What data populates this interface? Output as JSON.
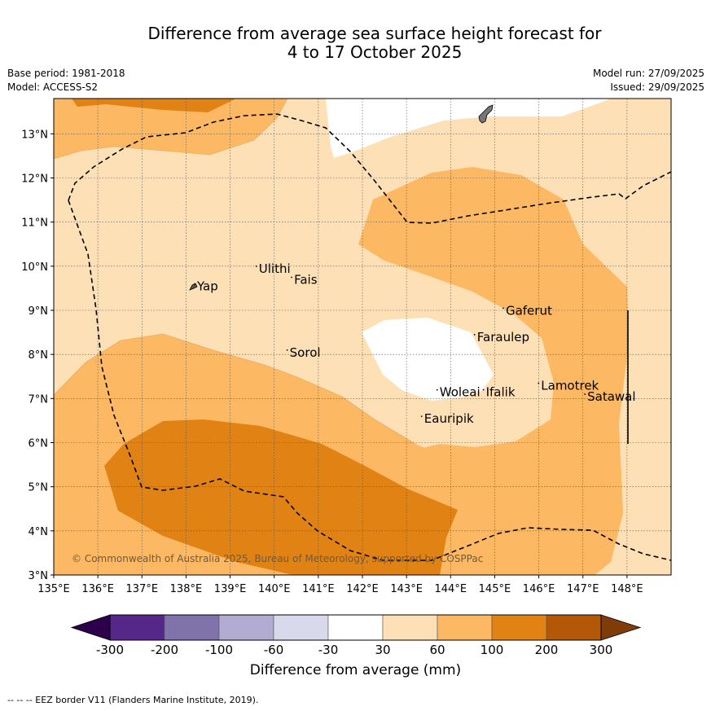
{
  "title": {
    "line1": "Difference from average sea surface height forecast for",
    "line2": "4 to 17 October 2025"
  },
  "meta": {
    "base_period": "Base period: 1981-2018",
    "model": "Model: ACCESS-S2",
    "model_run": "Model run: 27/09/2025",
    "issued": "Issued: 29/09/2025"
  },
  "map": {
    "lon_range": [
      135,
      149
    ],
    "lat_range": [
      3,
      13.8
    ],
    "lon_ticks": [
      "135°E",
      "136°E",
      "137°E",
      "138°E",
      "139°E",
      "140°E",
      "141°E",
      "142°E",
      "143°E",
      "144°E",
      "145°E",
      "146°E",
      "147°E",
      "148°E"
    ],
    "lat_ticks": [
      "3°N",
      "4°N",
      "5°N",
      "6°N",
      "7°N",
      "8°N",
      "9°N",
      "10°N",
      "11°N",
      "12°N",
      "13°N"
    ],
    "places": [
      {
        "name": "Yap",
        "lon": 138.25,
        "lat": 9.45
      },
      {
        "name": "Ulithi",
        "lon": 139.65,
        "lat": 9.85
      },
      {
        "name": "Fais",
        "lon": 140.45,
        "lat": 9.6
      },
      {
        "name": "Sorol",
        "lon": 140.35,
        "lat": 7.95
      },
      {
        "name": "Gaferut",
        "lon": 145.25,
        "lat": 8.9
      },
      {
        "name": "Faraulep",
        "lon": 144.6,
        "lat": 8.3
      },
      {
        "name": "Woleai",
        "lon": 143.75,
        "lat": 7.05
      },
      {
        "name": "Ifalik",
        "lon": 144.8,
        "lat": 7.05
      },
      {
        "name": "Lamotrek",
        "lon": 146.05,
        "lat": 7.2
      },
      {
        "name": "Satawal",
        "lon": 147.1,
        "lat": 6.95
      },
      {
        "name": "Eauripik",
        "lon": 143.4,
        "lat": 6.45
      }
    ],
    "copyright": "© Commonwealth of Australia 2025, Bureau of Meteorology, supported by COSPPac"
  },
  "colorbar": {
    "colors": [
      "#2d004b",
      "#542788",
      "#8073ac",
      "#b2abd2",
      "#d8daeb",
      "#ffffff",
      "#fee0b6",
      "#fdb863",
      "#e08214",
      "#b35806",
      "#7f3b08"
    ],
    "tick_labels": [
      "-300",
      "-200",
      "-100",
      "-60",
      "-30",
      "30",
      "60",
      "100",
      "200",
      "300"
    ],
    "title": "Difference from average (mm)"
  },
  "footnote": "--  --  -- EEZ border V11 (Flanders Marine Institute, 2019)."
}
